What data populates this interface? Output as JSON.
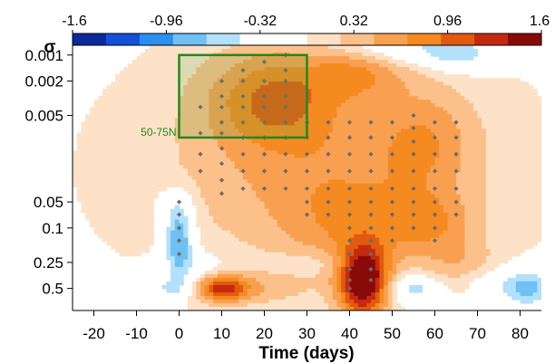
{
  "chart_data": {
    "type": "heatmap",
    "title": "",
    "xlabel": "Time (days)",
    "ylabel": "σ",
    "x_ticks": [
      -20,
      -10,
      0,
      10,
      20,
      30,
      40,
      50,
      60,
      70,
      80
    ],
    "x_tick_labels": [
      "-20",
      "-10",
      "0",
      "10",
      "20",
      "30",
      "40",
      "50",
      "60",
      "70",
      "80"
    ],
    "xlim": [
      -25,
      85
    ],
    "y_scale": "log",
    "y_inverted": true,
    "y_ticks": [
      0.001,
      0.002,
      0.005,
      0.05,
      0.1,
      0.25,
      0.5
    ],
    "y_tick_labels": [
      "0.001",
      "0.002",
      "0.005",
      "0.05",
      "0.1",
      "0.25",
      "0.5"
    ],
    "ylim": [
      0.0007,
      0.9
    ],
    "colorbar": {
      "min": -1.6,
      "max": 1.6,
      "tick_values": [
        -1.6,
        -0.96,
        -0.32,
        0.32,
        0.96,
        1.6
      ],
      "tick_labels": [
        "-1.6",
        "-0.96",
        "-0.32",
        "0.32",
        "0.96",
        "1.6"
      ],
      "colors": [
        "#0a2a9c",
        "#1450d8",
        "#2a8ff0",
        "#6ec0f5",
        "#b3e0fb",
        "#ffffff",
        "#ffffff",
        "#fde2c8",
        "#fcc08a",
        "#f9a050",
        "#f58a20",
        "#e25a10",
        "#c42a10",
        "#8a0a0a"
      ]
    },
    "anomaly_blobs": [
      {
        "x": 33,
        "y": 0.02,
        "sx": 24,
        "sy": 1.7,
        "v": 0.55
      },
      {
        "x": 22,
        "y": 0.003,
        "sx": 11,
        "sy": 0.9,
        "v": 0.75
      },
      {
        "x": 42,
        "y": 0.0015,
        "sx": 8,
        "sy": 0.5,
        "v": 0.55
      },
      {
        "x": 58,
        "y": 0.01,
        "sx": 8,
        "sy": 1.0,
        "v": 0.45
      },
      {
        "x": 58,
        "y": 0.09,
        "sx": 8,
        "sy": 0.6,
        "v": 0.55
      },
      {
        "x": 38,
        "y": 0.1,
        "sx": 10,
        "sy": 0.9,
        "v": 0.35
      },
      {
        "x": 43,
        "y": 0.5,
        "sx": 4,
        "sy": 0.7,
        "v": 1.25
      },
      {
        "x": 44,
        "y": 0.3,
        "sx": 4,
        "sy": 0.5,
        "v": 0.6
      },
      {
        "x": 10,
        "y": 0.5,
        "sx": 4,
        "sy": 0.25,
        "v": 1.05
      },
      {
        "x": 17,
        "y": 0.5,
        "sx": 8,
        "sy": 0.3,
        "v": 0.35
      },
      {
        "x": 66,
        "y": 0.25,
        "sx": 6,
        "sy": 0.4,
        "v": 0.3
      },
      {
        "x": 0,
        "y": 0.15,
        "sx": 2.3,
        "sy": 0.6,
        "v": -0.95
      },
      {
        "x": -1,
        "y": 0.06,
        "sx": 3,
        "sy": 0.4,
        "v": -0.4
      },
      {
        "x": 3,
        "y": 0.3,
        "sx": 6,
        "sy": 0.35,
        "v": -0.25
      },
      {
        "x": -2,
        "y": 0.5,
        "sx": 3.5,
        "sy": 0.2,
        "v": -0.45
      },
      {
        "x": 55,
        "y": 0.5,
        "sx": 4,
        "sy": 0.25,
        "v": -0.65
      },
      {
        "x": 82,
        "y": 0.5,
        "sx": 4,
        "sy": 0.35,
        "v": -0.8
      },
      {
        "x": 74,
        "y": 0.45,
        "sx": 4,
        "sy": 0.3,
        "v": -0.3
      },
      {
        "x": 33,
        "y": 0.25,
        "sx": 9,
        "sy": 0.25,
        "v": -0.2
      },
      {
        "x": 48,
        "y": 0.0008,
        "sx": 10,
        "sy": 0.35,
        "v": -0.4
      },
      {
        "x": 62,
        "y": 0.0009,
        "sx": 8,
        "sy": 0.3,
        "v": -0.3
      },
      {
        "x": 67,
        "y": 0.001,
        "sx": 6,
        "sy": 0.3,
        "v": -0.35
      }
    ],
    "significance_points": [
      [
        0,
        0.05
      ],
      [
        0,
        0.07
      ],
      [
        0,
        0.1
      ],
      [
        0,
        0.14
      ],
      [
        0,
        0.2
      ],
      [
        5,
        0.004
      ],
      [
        5,
        0.008
      ],
      [
        5,
        0.014
      ],
      [
        5,
        0.022
      ],
      [
        10,
        0.002
      ],
      [
        10,
        0.003
      ],
      [
        10,
        0.004
      ],
      [
        10,
        0.006
      ],
      [
        10,
        0.008
      ],
      [
        10,
        0.012
      ],
      [
        10,
        0.018
      ],
      [
        10,
        0.028
      ],
      [
        10,
        0.04
      ],
      [
        15,
        0.0015
      ],
      [
        15,
        0.002
      ],
      [
        15,
        0.003
      ],
      [
        15,
        0.004
      ],
      [
        15,
        0.006
      ],
      [
        15,
        0.009
      ],
      [
        15,
        0.014
      ],
      [
        15,
        0.022
      ],
      [
        15,
        0.035
      ],
      [
        20,
        0.0012
      ],
      [
        20,
        0.002
      ],
      [
        20,
        0.003
      ],
      [
        20,
        0.004
      ],
      [
        20,
        0.006
      ],
      [
        20,
        0.009
      ],
      [
        20,
        0.014
      ],
      [
        20,
        0.022
      ],
      [
        20,
        0.035
      ],
      [
        25,
        0.001
      ],
      [
        25,
        0.0015
      ],
      [
        25,
        0.002
      ],
      [
        25,
        0.003
      ],
      [
        25,
        0.004
      ],
      [
        25,
        0.006
      ],
      [
        25,
        0.009
      ],
      [
        25,
        0.014
      ],
      [
        25,
        0.022
      ],
      [
        25,
        0.035
      ],
      [
        30,
        0.006
      ],
      [
        30,
        0.009
      ],
      [
        30,
        0.014
      ],
      [
        30,
        0.022
      ],
      [
        30,
        0.035
      ],
      [
        30,
        0.05
      ],
      [
        30,
        0.07
      ],
      [
        35,
        0.006
      ],
      [
        35,
        0.009
      ],
      [
        35,
        0.014
      ],
      [
        35,
        0.022
      ],
      [
        35,
        0.035
      ],
      [
        35,
        0.05
      ],
      [
        35,
        0.07
      ],
      [
        40,
        0.006
      ],
      [
        40,
        0.009
      ],
      [
        40,
        0.014
      ],
      [
        40,
        0.022
      ],
      [
        40,
        0.035
      ],
      [
        40,
        0.05
      ],
      [
        40,
        0.07
      ],
      [
        40,
        0.1
      ],
      [
        40,
        0.14
      ],
      [
        40,
        0.2
      ],
      [
        40,
        0.3
      ],
      [
        40,
        0.4
      ],
      [
        40,
        0.5
      ],
      [
        45,
        0.006
      ],
      [
        45,
        0.009
      ],
      [
        45,
        0.014
      ],
      [
        45,
        0.022
      ],
      [
        45,
        0.035
      ],
      [
        45,
        0.05
      ],
      [
        45,
        0.07
      ],
      [
        45,
        0.1
      ],
      [
        45,
        0.14
      ],
      [
        45,
        0.2
      ],
      [
        45,
        0.3
      ],
      [
        45,
        0.4
      ],
      [
        50,
        0.006
      ],
      [
        50,
        0.009
      ],
      [
        50,
        0.014
      ],
      [
        50,
        0.022
      ],
      [
        50,
        0.035
      ],
      [
        50,
        0.05
      ],
      [
        50,
        0.07
      ],
      [
        50,
        0.1
      ],
      [
        50,
        0.14
      ],
      [
        55,
        0.005
      ],
      [
        55,
        0.007
      ],
      [
        55,
        0.01
      ],
      [
        55,
        0.014
      ],
      [
        55,
        0.022
      ],
      [
        55,
        0.035
      ],
      [
        55,
        0.05
      ],
      [
        55,
        0.07
      ],
      [
        55,
        0.1
      ],
      [
        60,
        0.006
      ],
      [
        60,
        0.009
      ],
      [
        60,
        0.014
      ],
      [
        60,
        0.022
      ],
      [
        60,
        0.035
      ],
      [
        60,
        0.05
      ],
      [
        60,
        0.07
      ],
      [
        60,
        0.1
      ],
      [
        60,
        0.14
      ],
      [
        65,
        0.006
      ],
      [
        65,
        0.009
      ],
      [
        65,
        0.014
      ],
      [
        65,
        0.022
      ],
      [
        65,
        0.035
      ],
      [
        65,
        0.05
      ],
      [
        65,
        0.07
      ]
    ],
    "annotations": [
      {
        "text": "50-75N",
        "x0": 0,
        "x1": 30,
        "y_top": 0.001,
        "y_bottom": 0.009,
        "color": "#1f8a1f"
      }
    ]
  }
}
